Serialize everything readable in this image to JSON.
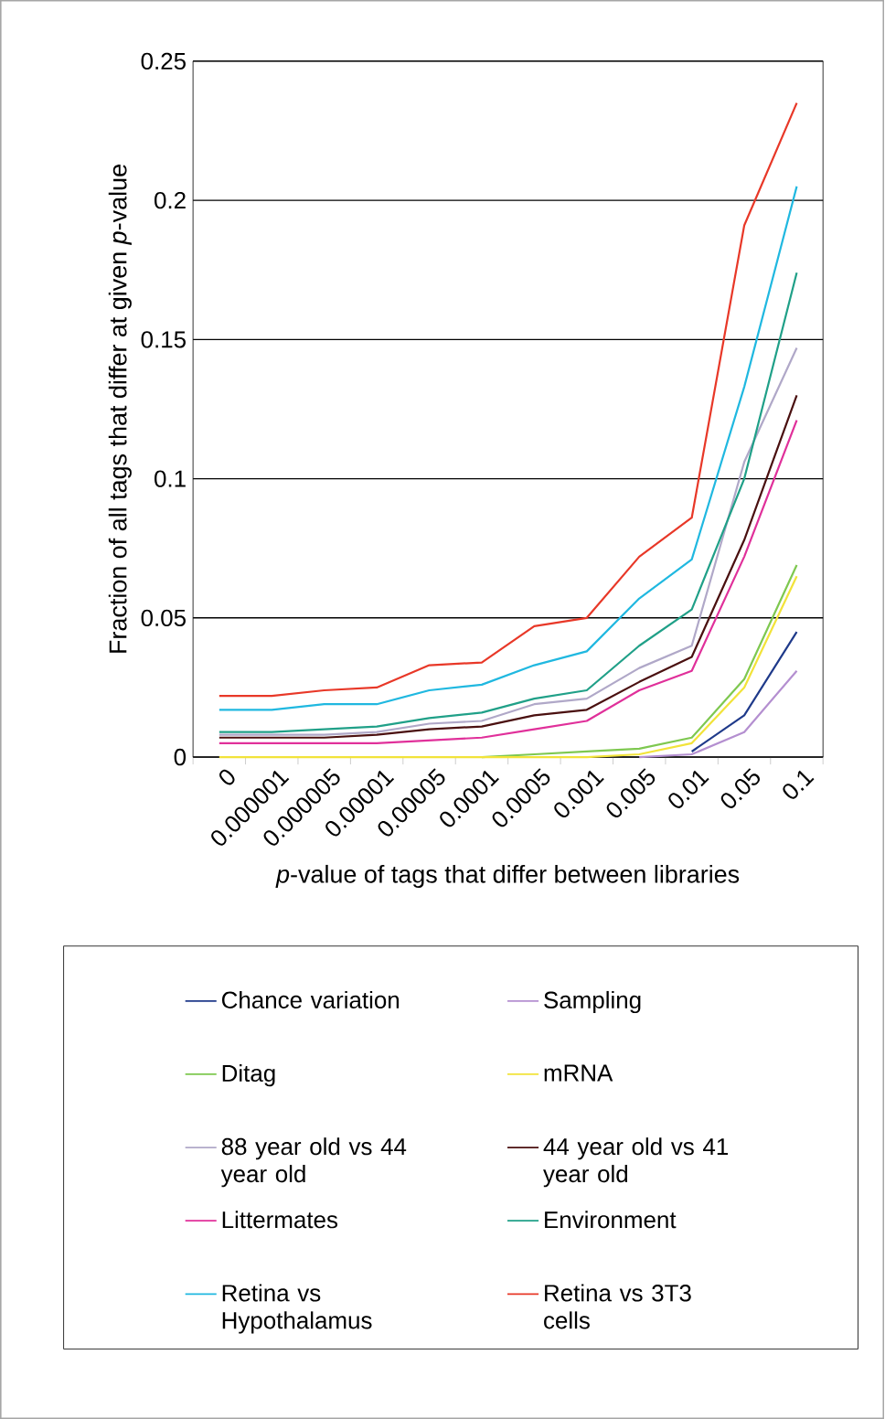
{
  "chart_data": {
    "type": "line",
    "xlabel": "*p*-value of tags that differ between libraries",
    "ylabel": "Fraction of all tags that differ at given *p*-value",
    "categories": [
      "0",
      "0.000001",
      "0.000005",
      "0.00001",
      "0.00005",
      "0.0001",
      "0.0005",
      "0.001",
      "0.005",
      "0.01",
      "0.05",
      "0.1"
    ],
    "ylim": [
      0,
      0.25
    ],
    "yticks": [
      0,
      0.05,
      0.1,
      0.15,
      0.2,
      0.25
    ],
    "grid": "y",
    "legend": "bottom",
    "marker": "none",
    "line_style": "solid",
    "series": [
      {
        "name": "Chance variation",
        "color": "#1f3a8a",
        "values": [
          null,
          null,
          null,
          null,
          null,
          null,
          null,
          null,
          null,
          0.002,
          0.015,
          0.045
        ]
      },
      {
        "name": "Sampling",
        "color": "#b48fd0",
        "values": [
          null,
          null,
          null,
          null,
          null,
          null,
          null,
          null,
          0,
          0.001,
          0.009,
          0.031
        ]
      },
      {
        "name": "Ditag",
        "color": "#7ec850",
        "values": [
          null,
          null,
          null,
          null,
          null,
          0,
          0.001,
          0.002,
          0.003,
          0.007,
          0.028,
          0.069
        ]
      },
      {
        "name": "mRNA",
        "color": "#f2e33a",
        "values": [
          0,
          0,
          0,
          0,
          0,
          0,
          0,
          0,
          0.001,
          0.005,
          0.025,
          0.065
        ]
      },
      {
        "name": "88 year old vs 44 year old",
        "color": "#b0a8c8",
        "values": [
          0.008,
          0.008,
          0.008,
          0.009,
          0.012,
          0.013,
          0.019,
          0.021,
          0.032,
          0.04,
          0.106,
          0.147
        ]
      },
      {
        "name": "44 year old vs 41 year old",
        "color": "#4a1010",
        "values": [
          0.007,
          0.007,
          0.007,
          0.008,
          0.01,
          0.011,
          0.015,
          0.017,
          0.027,
          0.036,
          0.078,
          0.13
        ]
      },
      {
        "name": "Littermates",
        "color": "#e0309a",
        "values": [
          0.005,
          0.005,
          0.005,
          0.005,
          0.006,
          0.007,
          0.01,
          0.013,
          0.024,
          0.031,
          0.072,
          0.121
        ]
      },
      {
        "name": "Environment",
        "color": "#20a088",
        "values": [
          0.009,
          0.009,
          0.01,
          0.011,
          0.014,
          0.016,
          0.021,
          0.024,
          0.04,
          0.053,
          0.1,
          0.174
        ]
      },
      {
        "name": "Retina vs Hypothalamus",
        "color": "#20b8e0",
        "values": [
          0.017,
          0.017,
          0.019,
          0.019,
          0.024,
          0.026,
          0.033,
          0.038,
          0.057,
          0.071,
          0.133,
          0.205
        ]
      },
      {
        "name": "Retina vs 3T3 cells",
        "color": "#e83828",
        "values": [
          0.022,
          0.022,
          0.024,
          0.025,
          0.033,
          0.034,
          0.047,
          0.05,
          0.072,
          0.086,
          0.191,
          0.235
        ]
      }
    ]
  }
}
